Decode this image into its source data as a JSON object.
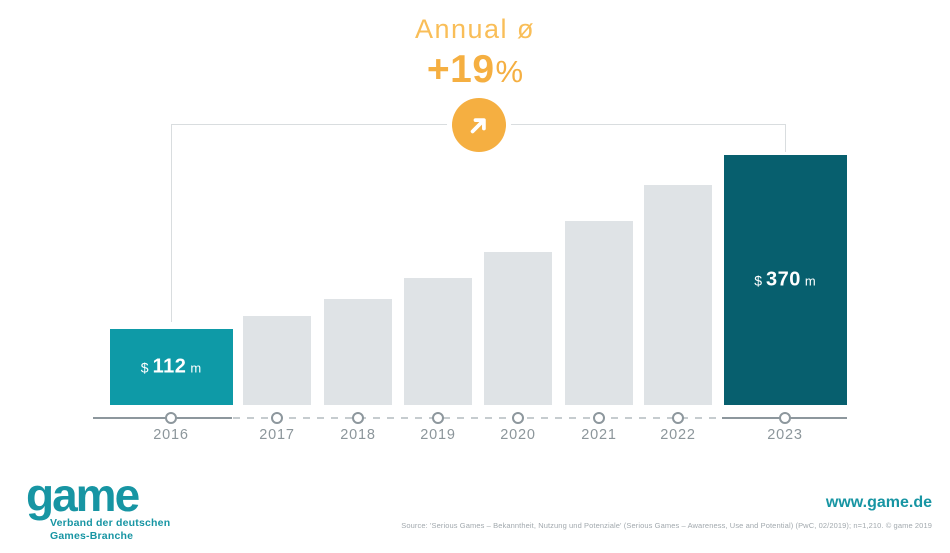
{
  "header": {
    "title": "Annual ø",
    "growth_value": "+19",
    "growth_unit": "%"
  },
  "chart_data": {
    "type": "bar",
    "title": "Annual ø",
    "annual_growth_annotation": "+19%",
    "categories": [
      "2016",
      "2017",
      "2018",
      "2019",
      "2020",
      "2021",
      "2022",
      "2023"
    ],
    "values": [
      112,
      132,
      157,
      188,
      226,
      272,
      326,
      370
    ],
    "currency": "$",
    "value_unit_suffix": "m",
    "labeled_bars": [
      {
        "index": 0,
        "currency": "$",
        "amount": "112",
        "suffix": "m"
      },
      {
        "index": 7,
        "currency": "$",
        "amount": "370",
        "suffix": "m"
      }
    ],
    "highlight_indices": [
      0,
      7
    ],
    "ylim": [
      0,
      380
    ],
    "grid": false,
    "legend": false,
    "xlabel": "",
    "ylabel": ""
  },
  "footer": {
    "logo_text": "game",
    "logo_sub_line1": "Verband der deutschen",
    "logo_sub_line2": "Games-Branche",
    "website": "www.game.de",
    "source": "Source: 'Serious Games – Bekanntheit, Nutzung und Potenziale' (Serious Games – Awareness, Use and Potential) (PwC, 02/2019); n=1,210. © game 2019"
  },
  "icons": {
    "badge": "trend-up-arrow-icon"
  },
  "colors": {
    "accent_orange": "#F5AF41",
    "accent_orange_light": "#F9BE58",
    "teal_primary": "#0E9AA7",
    "teal_dark": "#075F6E",
    "bar_gray": "#DFE3E6",
    "axis_gray": "#8D979D",
    "dash_gray": "#C6CCCF",
    "line_gray": "#D9DDDF",
    "text_gray": "#8C969B",
    "source_gray": "#A2A9AE",
    "brand_teal": "#1795A3"
  }
}
